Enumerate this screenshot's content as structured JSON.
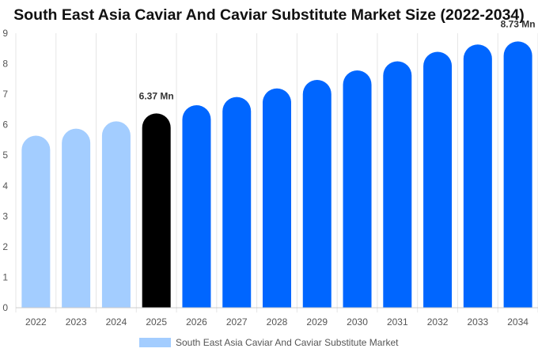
{
  "chart_data": {
    "type": "bar",
    "title": "South East Asia Caviar And Caviar Substitute Market Size (2022-2034)",
    "categories": [
      "2022",
      "2023",
      "2024",
      "2025",
      "2026",
      "2027",
      "2028",
      "2029",
      "2030",
      "2031",
      "2032",
      "2033",
      "2034"
    ],
    "series": [
      {
        "name": "South East Asia Caviar And Caviar Substitute Market",
        "values": [
          5.64,
          5.87,
          6.11,
          6.37,
          6.64,
          6.91,
          7.19,
          7.47,
          7.78,
          8.08,
          8.39,
          8.63,
          8.73
        ]
      }
    ],
    "bar_colors": [
      "#a3cdff",
      "#a3cdff",
      "#a3cdff",
      "#000000",
      "#0066ff",
      "#0066ff",
      "#0066ff",
      "#0066ff",
      "#0066ff",
      "#0066ff",
      "#0066ff",
      "#0066ff",
      "#0066ff"
    ],
    "data_labels": [
      {
        "index": 3,
        "text": "6.37 Mn"
      },
      {
        "index": 12,
        "text": "8.73 Mn"
      }
    ],
    "ylim": [
      0,
      9
    ],
    "yticks": [
      "0",
      "1",
      "2",
      "3",
      "4",
      "5",
      "6",
      "7",
      "8",
      "9"
    ],
    "xlabel": "",
    "ylabel": "",
    "grid": "vertical",
    "legend": {
      "position": "bottom",
      "label": "South East Asia Caviar And Caviar Substitute Market",
      "color": "#a3cdff"
    }
  }
}
